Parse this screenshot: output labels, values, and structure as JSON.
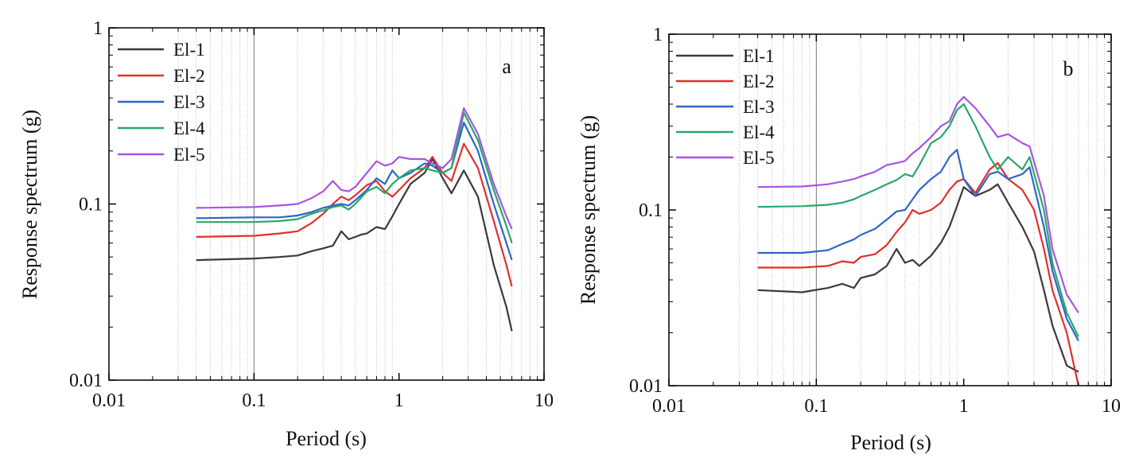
{
  "chart_data": [
    {
      "panel": "a",
      "type": "line",
      "xscale": "log",
      "yscale": "log",
      "xlim": [
        0.01,
        10
      ],
      "ylim": [
        0.01,
        1
      ],
      "xticks": [
        "0.01",
        "0.1",
        "1",
        "10"
      ],
      "yticks": [
        "0.01",
        "0.1",
        "1"
      ],
      "xlabel": "Period (s)",
      "ylabel": "Response spectrum (g)",
      "legend_position": "top-left",
      "series": [
        {
          "name": "El-1",
          "color": "#3a3a3a",
          "x": [
            0.04,
            0.1,
            0.15,
            0.2,
            0.25,
            0.3,
            0.35,
            0.4,
            0.45,
            0.5,
            0.55,
            0.6,
            0.7,
            0.8,
            0.9,
            1.0,
            1.2,
            1.5,
            1.7,
            2.0,
            2.3,
            2.8,
            3.5,
            4.5,
            5.5,
            6.0
          ],
          "y": [
            0.048,
            0.049,
            0.05,
            0.051,
            0.054,
            0.056,
            0.058,
            0.07,
            0.063,
            0.065,
            0.067,
            0.068,
            0.074,
            0.072,
            0.085,
            0.1,
            0.13,
            0.15,
            0.18,
            0.14,
            0.115,
            0.155,
            0.11,
            0.045,
            0.026,
            0.019
          ]
        },
        {
          "name": "El-2",
          "color": "#e0302a",
          "x": [
            0.04,
            0.1,
            0.15,
            0.2,
            0.25,
            0.3,
            0.35,
            0.4,
            0.45,
            0.5,
            0.6,
            0.7,
            0.8,
            0.9,
            1.0,
            1.2,
            1.5,
            1.7,
            2.0,
            2.3,
            2.8,
            3.5,
            4.5,
            5.5,
            6.0
          ],
          "y": [
            0.065,
            0.066,
            0.068,
            0.07,
            0.078,
            0.088,
            0.1,
            0.11,
            0.105,
            0.112,
            0.128,
            0.135,
            0.118,
            0.11,
            0.12,
            0.14,
            0.16,
            0.185,
            0.15,
            0.135,
            0.22,
            0.16,
            0.08,
            0.045,
            0.034
          ]
        },
        {
          "name": "El-3",
          "color": "#2b67c8",
          "x": [
            0.04,
            0.1,
            0.15,
            0.2,
            0.25,
            0.3,
            0.35,
            0.4,
            0.45,
            0.5,
            0.6,
            0.7,
            0.8,
            0.9,
            1.0,
            1.2,
            1.5,
            1.7,
            2.0,
            2.3,
            2.8,
            3.5,
            4.5,
            5.5,
            6.0
          ],
          "y": [
            0.083,
            0.084,
            0.084,
            0.086,
            0.09,
            0.095,
            0.098,
            0.1,
            0.098,
            0.105,
            0.12,
            0.14,
            0.13,
            0.155,
            0.14,
            0.15,
            0.17,
            0.165,
            0.15,
            0.16,
            0.29,
            0.2,
            0.1,
            0.06,
            0.048
          ]
        },
        {
          "name": "El-4",
          "color": "#27a868",
          "x": [
            0.04,
            0.1,
            0.15,
            0.2,
            0.25,
            0.3,
            0.35,
            0.4,
            0.45,
            0.5,
            0.6,
            0.7,
            0.8,
            0.9,
            1.0,
            1.2,
            1.5,
            1.7,
            2.0,
            2.3,
            2.8,
            3.5,
            4.5,
            5.5,
            6.0
          ],
          "y": [
            0.079,
            0.079,
            0.08,
            0.082,
            0.088,
            0.092,
            0.096,
            0.098,
            0.093,
            0.1,
            0.118,
            0.125,
            0.115,
            0.13,
            0.14,
            0.155,
            0.16,
            0.155,
            0.15,
            0.16,
            0.33,
            0.23,
            0.12,
            0.075,
            0.06
          ]
        },
        {
          "name": "El-5",
          "color": "#a855e0",
          "x": [
            0.04,
            0.1,
            0.15,
            0.2,
            0.25,
            0.3,
            0.35,
            0.4,
            0.45,
            0.5,
            0.6,
            0.7,
            0.8,
            0.9,
            1.0,
            1.2,
            1.5,
            1.7,
            2.0,
            2.3,
            2.8,
            3.5,
            4.5,
            5.5,
            6.0
          ],
          "y": [
            0.095,
            0.096,
            0.098,
            0.1,
            0.108,
            0.118,
            0.135,
            0.12,
            0.118,
            0.125,
            0.15,
            0.175,
            0.165,
            0.17,
            0.185,
            0.18,
            0.18,
            0.17,
            0.16,
            0.18,
            0.35,
            0.25,
            0.13,
            0.085,
            0.072
          ]
        }
      ]
    },
    {
      "panel": "b",
      "type": "line",
      "xscale": "log",
      "yscale": "log",
      "xlim": [
        0.01,
        10
      ],
      "ylim": [
        0.01,
        1
      ],
      "xticks": [
        "0.01",
        "0.1",
        "1",
        "10"
      ],
      "yticks": [
        "0.01",
        "0.1",
        "1"
      ],
      "xlabel": "Period (s)",
      "ylabel": "Response spectrum (g)",
      "legend_position": "top-left",
      "series": [
        {
          "name": "El-1",
          "color": "#3a3a3a",
          "x": [
            0.04,
            0.08,
            0.12,
            0.15,
            0.18,
            0.2,
            0.25,
            0.3,
            0.35,
            0.4,
            0.45,
            0.5,
            0.6,
            0.7,
            0.8,
            0.9,
            1.0,
            1.2,
            1.5,
            1.7,
            2.0,
            2.5,
            3.0,
            3.5,
            4.0,
            5.0,
            6.0
          ],
          "y": [
            0.035,
            0.034,
            0.036,
            0.038,
            0.036,
            0.041,
            0.043,
            0.048,
            0.06,
            0.05,
            0.052,
            0.048,
            0.055,
            0.065,
            0.08,
            0.105,
            0.135,
            0.12,
            0.13,
            0.14,
            0.11,
            0.08,
            0.058,
            0.035,
            0.022,
            0.013,
            0.012
          ]
        },
        {
          "name": "El-2",
          "color": "#e0302a",
          "x": [
            0.04,
            0.08,
            0.12,
            0.15,
            0.18,
            0.2,
            0.25,
            0.3,
            0.35,
            0.4,
            0.45,
            0.5,
            0.6,
            0.7,
            0.8,
            0.9,
            1.0,
            1.2,
            1.5,
            1.7,
            2.0,
            2.5,
            3.0,
            3.5,
            4.0,
            5.0,
            6.0
          ],
          "y": [
            0.047,
            0.047,
            0.048,
            0.051,
            0.05,
            0.054,
            0.056,
            0.063,
            0.075,
            0.085,
            0.1,
            0.095,
            0.1,
            0.11,
            0.13,
            0.145,
            0.15,
            0.125,
            0.17,
            0.185,
            0.15,
            0.13,
            0.1,
            0.06,
            0.035,
            0.02,
            0.01
          ]
        },
        {
          "name": "El-3",
          "color": "#2b67c8",
          "x": [
            0.04,
            0.08,
            0.12,
            0.15,
            0.18,
            0.2,
            0.25,
            0.3,
            0.35,
            0.4,
            0.45,
            0.5,
            0.6,
            0.7,
            0.8,
            0.9,
            1.0,
            1.2,
            1.5,
            1.7,
            2.0,
            2.5,
            2.8,
            3.5,
            4.0,
            5.0,
            6.0
          ],
          "y": [
            0.057,
            0.057,
            0.059,
            0.064,
            0.068,
            0.072,
            0.078,
            0.088,
            0.098,
            0.1,
            0.115,
            0.13,
            0.15,
            0.165,
            0.2,
            0.22,
            0.15,
            0.12,
            0.16,
            0.165,
            0.15,
            0.16,
            0.175,
            0.08,
            0.045,
            0.024,
            0.018
          ]
        },
        {
          "name": "El-4",
          "color": "#27a868",
          "x": [
            0.04,
            0.08,
            0.12,
            0.15,
            0.18,
            0.2,
            0.25,
            0.3,
            0.35,
            0.4,
            0.45,
            0.5,
            0.6,
            0.7,
            0.8,
            0.9,
            1.0,
            1.2,
            1.5,
            1.7,
            2.0,
            2.5,
            2.8,
            3.5,
            4.0,
            5.0,
            6.0
          ],
          "y": [
            0.104,
            0.105,
            0.107,
            0.11,
            0.115,
            0.12,
            0.13,
            0.14,
            0.148,
            0.16,
            0.155,
            0.18,
            0.24,
            0.26,
            0.3,
            0.37,
            0.4,
            0.3,
            0.2,
            0.17,
            0.2,
            0.17,
            0.2,
            0.1,
            0.05,
            0.026,
            0.019
          ]
        },
        {
          "name": "El-5",
          "color": "#a855e0",
          "x": [
            0.04,
            0.08,
            0.12,
            0.15,
            0.18,
            0.2,
            0.25,
            0.3,
            0.35,
            0.4,
            0.45,
            0.5,
            0.6,
            0.7,
            0.8,
            0.9,
            1.0,
            1.2,
            1.5,
            1.7,
            2.0,
            2.5,
            2.8,
            3.5,
            4.0,
            5.0,
            6.0
          ],
          "y": [
            0.135,
            0.136,
            0.14,
            0.145,
            0.15,
            0.155,
            0.165,
            0.18,
            0.185,
            0.19,
            0.21,
            0.225,
            0.26,
            0.3,
            0.32,
            0.4,
            0.44,
            0.38,
            0.3,
            0.26,
            0.27,
            0.24,
            0.23,
            0.12,
            0.06,
            0.033,
            0.026
          ]
        }
      ]
    }
  ]
}
